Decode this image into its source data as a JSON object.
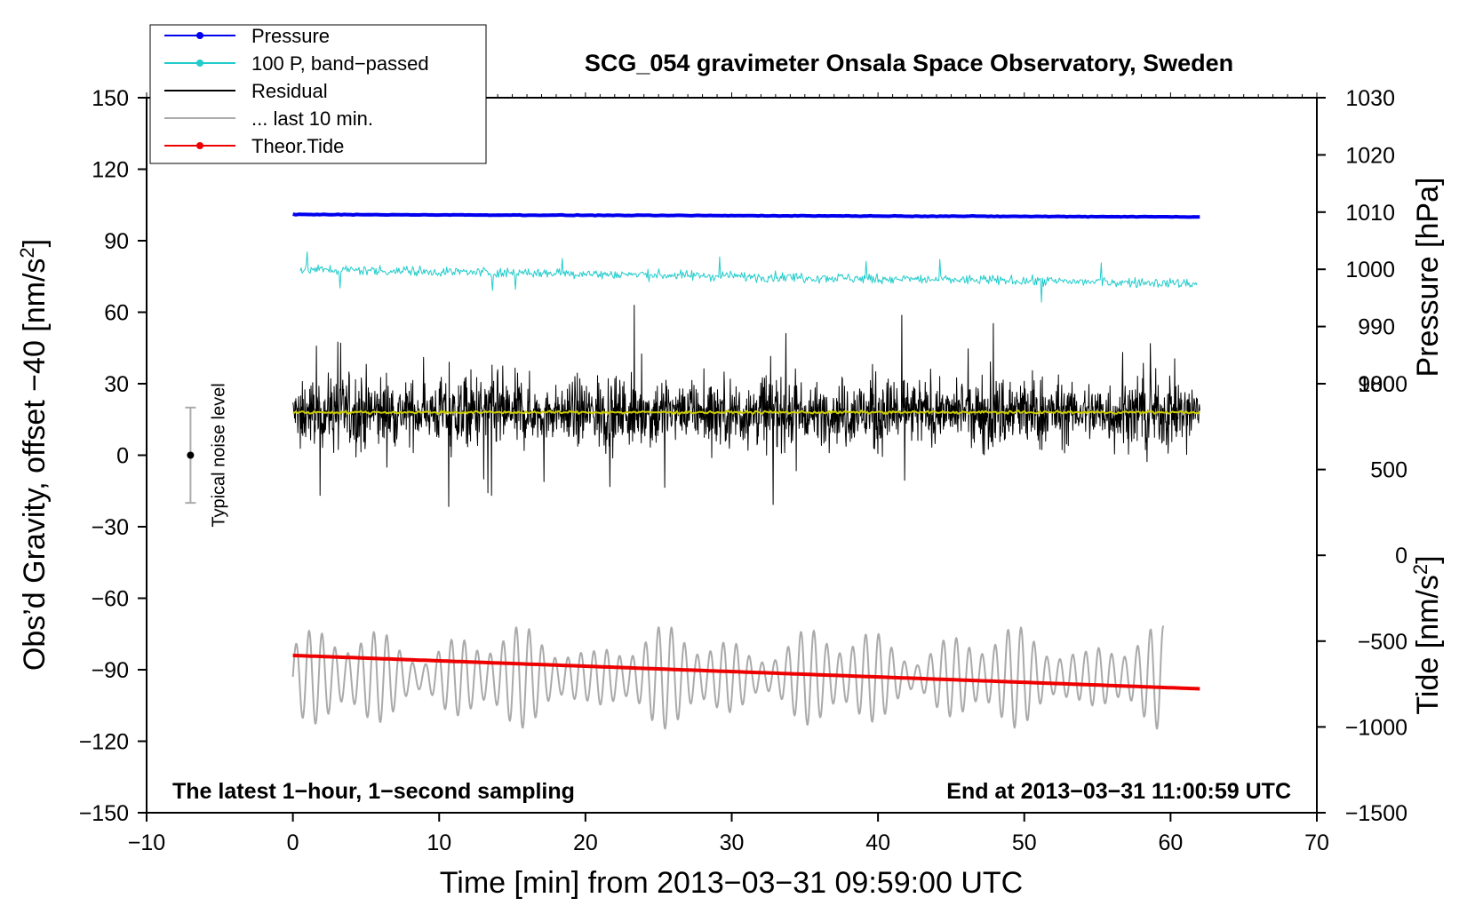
{
  "chart_data": {
    "type": "line",
    "title": "SCG_054 gravimeter Onsala Space Observatory, Sweden",
    "xlabel": "Time [min] from 2013−03−31 09:59:00 UTC",
    "ylabel_left_main": "Obs’d Gravity, offset −40 [nm/s",
    "ylabel_left_sup": "2",
    "ylabel_left_end": "]",
    "ylabel_right_pressure": "Pressure [hPa]",
    "ylabel_right_tide_main": "Tide [nm/s",
    "ylabel_right_tide_sup": "2",
    "ylabel_right_tide_end": "]",
    "xlim": [
      -10,
      70
    ],
    "ylim_left": [
      -150,
      150
    ],
    "pressure_axis": {
      "range": [
        980,
        1030
      ],
      "data_ylim_equiv": [
        30,
        150
      ]
    },
    "tide_axis": {
      "range": [
        -1500,
        1000
      ],
      "data_ylim_equiv": [
        -150,
        30
      ]
    },
    "x_ticks": [
      {
        "v": -10,
        "label": "−10"
      },
      {
        "v": 0,
        "label": "0"
      },
      {
        "v": 10,
        "label": "10"
      },
      {
        "v": 20,
        "label": "20"
      },
      {
        "v": 30,
        "label": "30"
      },
      {
        "v": 40,
        "label": "40"
      },
      {
        "v": 50,
        "label": "50"
      },
      {
        "v": 60,
        "label": "60"
      },
      {
        "v": 70,
        "label": "70"
      }
    ],
    "y_ticks_left": [
      {
        "v": 150,
        "label": "150"
      },
      {
        "v": 120,
        "label": "120"
      },
      {
        "v": 90,
        "label": "90"
      },
      {
        "v": 60,
        "label": "60"
      },
      {
        "v": 30,
        "label": "30"
      },
      {
        "v": 0,
        "label": "0"
      },
      {
        "v": -30,
        "label": "−30"
      },
      {
        "v": -60,
        "label": "−60"
      },
      {
        "v": -90,
        "label": "−90"
      },
      {
        "v": -120,
        "label": "−120"
      },
      {
        "v": -150,
        "label": "−150"
      }
    ],
    "pressure_ticks": [
      {
        "v": 1030,
        "label": "1030"
      },
      {
        "v": 1020,
        "label": "1020"
      },
      {
        "v": 1010,
        "label": "1010"
      },
      {
        "v": 1000,
        "label": "1000"
      },
      {
        "v": 990,
        "label": "990"
      },
      {
        "v": 980,
        "label": "980"
      }
    ],
    "tide_ticks": [
      {
        "v": 1000,
        "label": "1000"
      },
      {
        "v": 500,
        "label": "500"
      },
      {
        "v": 0,
        "label": "0"
      },
      {
        "v": -500,
        "label": "−500"
      },
      {
        "v": -1000,
        "label": "−1000"
      },
      {
        "v": -1500,
        "label": "−1500"
      }
    ],
    "legend": [
      {
        "label": "Pressure",
        "color": "#0000ee",
        "marker": true
      },
      {
        "label": "100 P, band−passed",
        "color": "#22cccc",
        "marker": true
      },
      {
        "label": "Residual",
        "color": "#000000",
        "marker": false
      },
      {
        "label": "... last 10 min.",
        "color": "#aaaaaa",
        "marker": false
      },
      {
        "label": "Theor.Tide",
        "color": "#ee0000",
        "marker": true
      }
    ],
    "legend_position": "top-left",
    "series": [
      {
        "name": "Pressure",
        "color": "#0000ee",
        "x_range": [
          0,
          62
        ],
        "y_start": 101,
        "y_end": 100,
        "noise": 0.3
      },
      {
        "name": "100 P, band−passed",
        "color": "#22cccc",
        "x_range": [
          0.5,
          61.8
        ],
        "y_start": 78,
        "y_end": 72,
        "noise": 3
      },
      {
        "name": "Residual",
        "color": "#000000",
        "x_range": [
          0,
          62
        ],
        "y_center": 18,
        "amplitude": 15
      },
      {
        "name": "Residual mean",
        "color": "#cccc00",
        "x_range": [
          0,
          62
        ],
        "y_center": 18
      },
      {
        "name": "... last 10 min.",
        "color": "#aaaaaa",
        "x_range": [
          0,
          59.5
        ],
        "y_center": -93,
        "amplitude": 20
      },
      {
        "name": "Theor.Tide",
        "color": "#ee0000",
        "x_range": [
          0,
          62
        ],
        "y_start": -84,
        "y_end": -98
      }
    ],
    "noise_bar": {
      "x": -7,
      "center": 0,
      "low": -20,
      "high": 20,
      "label": "Typical noise level"
    },
    "annotation_left": "The latest 1−hour, 1−second sampling",
    "annotation_right": "End at 2013−03−31 11:00:59 UTC"
  }
}
